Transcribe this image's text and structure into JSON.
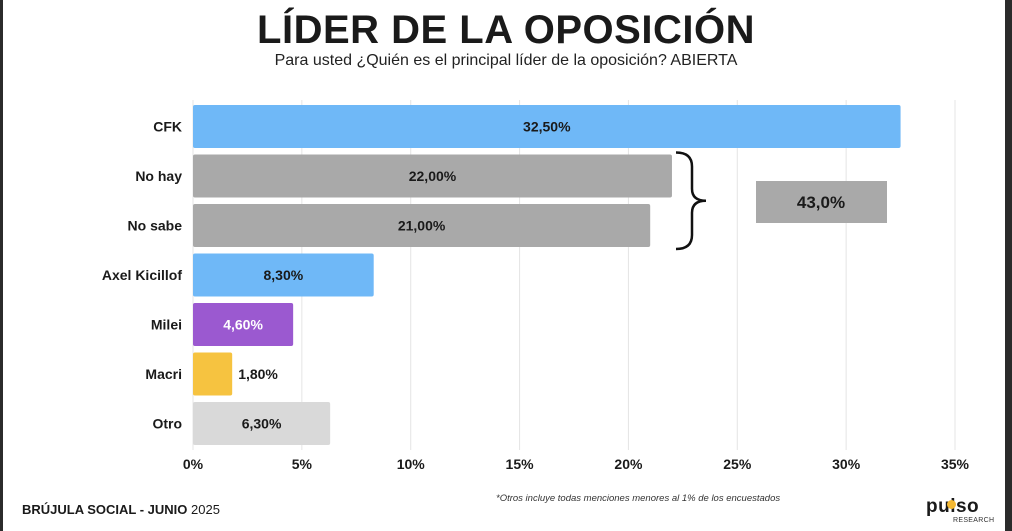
{
  "chart_data": {
    "type": "bar",
    "orientation": "horizontal",
    "title": "LÍDER DE LA OPOSICIÓN",
    "subtitle": "Para usted ¿Quién es el principal líder de la oposición? ABIERTA",
    "categories": [
      "CFK",
      "No hay",
      "No sabe",
      "Axel Kicillof",
      "Milei",
      "Macri",
      "Otro"
    ],
    "values": [
      32.5,
      22.0,
      21.0,
      8.3,
      4.6,
      1.8,
      6.3
    ],
    "value_labels": [
      "32,50%",
      "22,00%",
      "21,00%",
      "8,30%",
      "4,60%",
      "1,80%",
      "6,30%"
    ],
    "colors": [
      "#6fb8f7",
      "#a9a9a9",
      "#a9a9a9",
      "#6fb8f7",
      "#9b59d0",
      "#f6c340",
      "#d9d9d9"
    ],
    "label_colors": [
      "#1a1a1a",
      "#1a1a1a",
      "#1a1a1a",
      "#1a1a1a",
      "#ffffff",
      "#1a1a1a",
      "#1a1a1a"
    ],
    "xlim": [
      0,
      35
    ],
    "x_ticks": [
      0,
      5,
      10,
      15,
      20,
      25,
      30,
      35
    ],
    "x_tick_labels": [
      "0%",
      "5%",
      "10%",
      "15%",
      "20%",
      "25%",
      "30%",
      "35%"
    ],
    "grid": true,
    "annotation": {
      "label": "43,0%",
      "value": 43.0,
      "groups": [
        "No hay",
        "No sabe"
      ],
      "box_color": "#a9a9a9"
    }
  },
  "footer": {
    "source": "BRÚJULA SOCIAL - JUNIO",
    "year": "2025",
    "footnote": "*Otros incluye todas menciones menores al 1% de los encuestados"
  },
  "logo": {
    "text": "pulso",
    "subtext": "RESEARCH"
  }
}
